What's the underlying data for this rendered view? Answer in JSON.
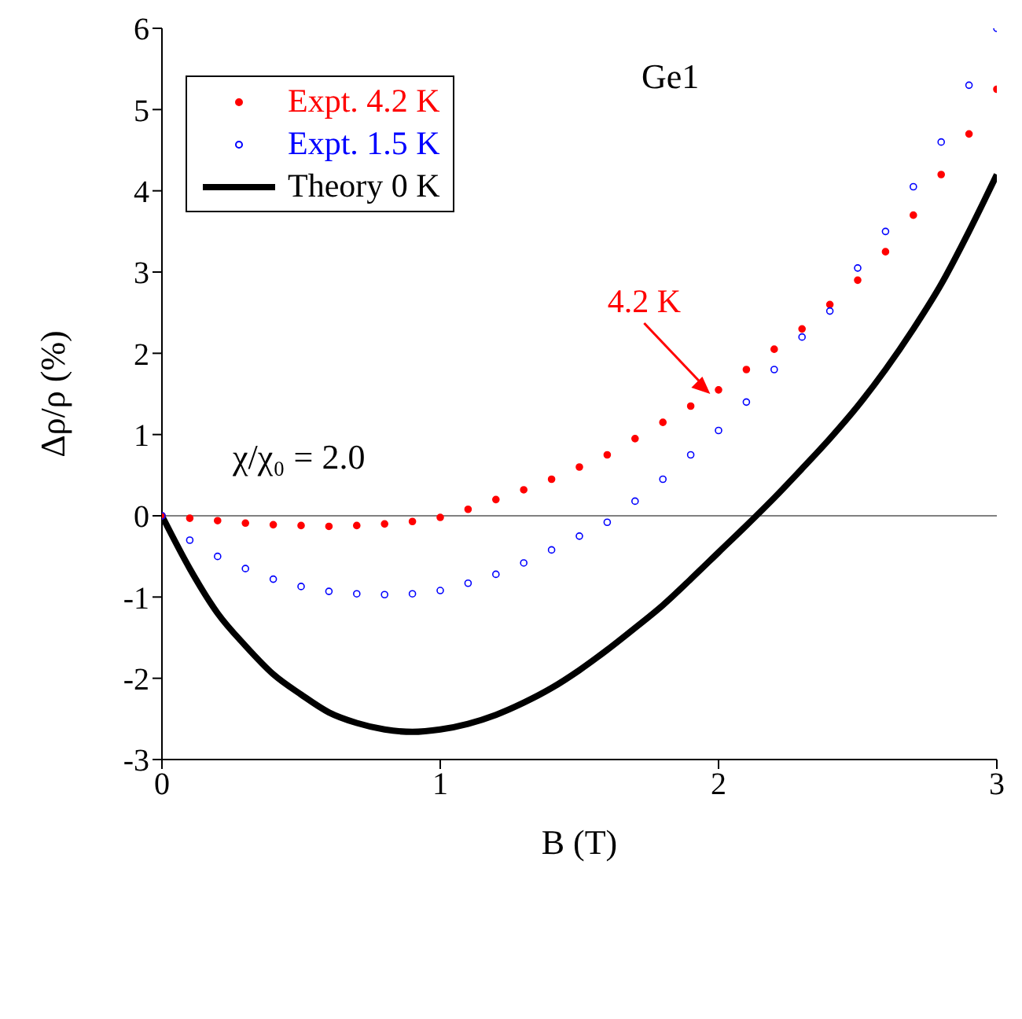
{
  "chart_data": {
    "type": "scatter",
    "xlabel": "B (T)",
    "ylabel": "Δρ/ρ (%)",
    "xlim": [
      0,
      3
    ],
    "xticks": [
      0,
      1,
      2,
      3
    ],
    "ylim": [
      -3,
      6
    ],
    "yticks": [
      -3,
      -2,
      -1,
      0,
      1,
      2,
      3,
      4,
      5,
      6
    ],
    "x": [
      0,
      0.1,
      0.2,
      0.3,
      0.4,
      0.5,
      0.6,
      0.7,
      0.8,
      0.9,
      1.0,
      1.1,
      1.2,
      1.3,
      1.4,
      1.5,
      1.6,
      1.7,
      1.8,
      1.9,
      2.0,
      2.1,
      2.2,
      2.3,
      2.4,
      2.5,
      2.6,
      2.7,
      2.8,
      2.9,
      3.0
    ],
    "series": [
      {
        "name": "Expt. 4.2 K",
        "color": "#ff0000",
        "values": [
          0,
          -0.03,
          -0.06,
          -0.09,
          -0.11,
          -0.12,
          -0.13,
          -0.12,
          -0.1,
          -0.07,
          -0.02,
          0.08,
          0.2,
          0.32,
          0.45,
          0.6,
          0.75,
          0.95,
          1.15,
          1.35,
          1.55,
          1.8,
          2.05,
          2.3,
          2.6,
          2.9,
          3.25,
          3.7,
          4.2,
          4.7,
          5.25
        ]
      },
      {
        "name": "Expt. 1.5 K",
        "color": "#0000ff",
        "values": [
          0,
          -0.3,
          -0.5,
          -0.65,
          -0.78,
          -0.87,
          -0.93,
          -0.96,
          -0.97,
          -0.96,
          -0.92,
          -0.83,
          -0.72,
          -0.58,
          -0.42,
          -0.25,
          -0.08,
          0.18,
          0.45,
          0.75,
          1.05,
          1.4,
          1.8,
          2.2,
          2.52,
          3.05,
          3.5,
          4.05,
          4.6,
          5.3,
          6.0
        ]
      },
      {
        "name": "Theory 0 K",
        "color": "#000000",
        "type": "line",
        "values": [
          0,
          -0.65,
          -1.2,
          -1.6,
          -1.95,
          -2.2,
          -2.42,
          -2.55,
          -2.63,
          -2.66,
          -2.63,
          -2.56,
          -2.45,
          -2.3,
          -2.12,
          -1.9,
          -1.65,
          -1.38,
          -1.1,
          -0.78,
          -0.45,
          -0.12,
          0.22,
          0.58,
          0.95,
          1.35,
          1.8,
          2.3,
          2.85,
          3.5,
          4.2
        ]
      }
    ],
    "ref_lines": [
      {
        "axis": "y",
        "value": 0,
        "color": "#808080"
      }
    ],
    "annotations": [
      "Ge1",
      "χ/χ₀ = 2.0",
      {
        "text": "4.2 K",
        "x": 1.97,
        "y": 1.5
      }
    ],
    "legend": "top left",
    "grid": false
  }
}
